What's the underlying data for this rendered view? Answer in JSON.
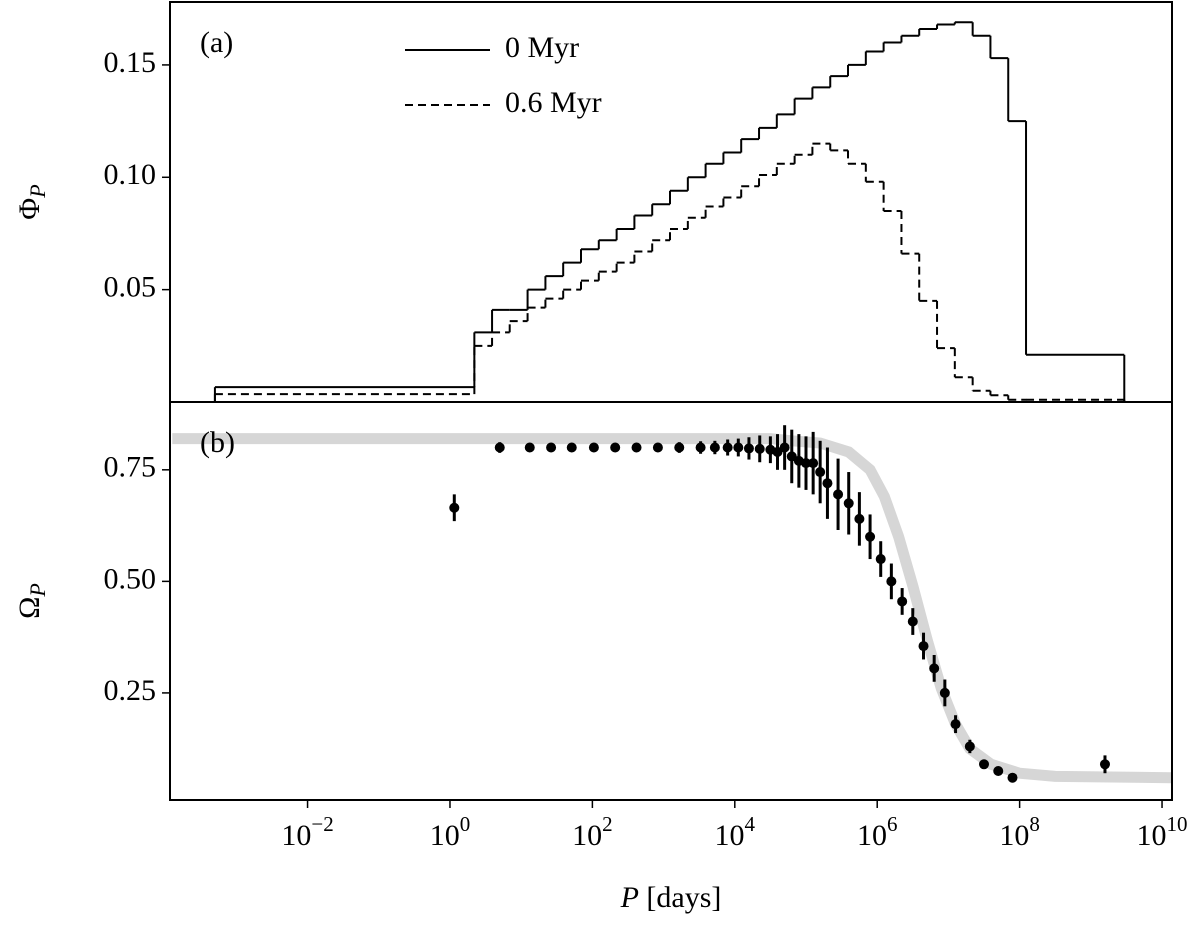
{
  "chart_data": [
    {
      "type": "histogram",
      "annotation": "(a)",
      "y_label": "ΦP",
      "xscale": "log",
      "xlim": [
        0.000117,
        13800000000.0
      ],
      "ylim": [
        0,
        0.178
      ],
      "yticks": [
        0.05,
        {
          "value": 0.1,
          "label": "0.10"
        },
        0.15
      ],
      "legend": "upper center",
      "bins": [
        0.0005,
        2.2,
        3.9,
        6.9,
        12.3,
        21.9,
        38.9,
        69.2,
        123,
        219,
        389,
        692,
        1230,
        2190,
        3890,
        6920,
        12300,
        21900,
        38900,
        69200,
        123000,
        219000,
        389000,
        692000,
        1230000,
        2190000,
        3890000,
        6920000,
        12300000,
        21900000,
        38900000,
        69200000,
        123000000,
        2950000000
      ],
      "series": [
        {
          "name": "0 Myr",
          "color": "#000000",
          "dash": "none",
          "values": [
            0.0066,
            0.031,
            0.041,
            0.041,
            0.05,
            0.056,
            0.062,
            0.068,
            0.072,
            0.077,
            0.083,
            0.088,
            0.094,
            0.1,
            0.106,
            0.111,
            0.117,
            0.122,
            0.128,
            0.135,
            0.14,
            0.145,
            0.15,
            0.156,
            0.16,
            0.163,
            0.166,
            0.168,
            0.169,
            0.163,
            0.153,
            0.125,
            0.021
          ]
        },
        {
          "name": "0.6 Myr",
          "color": "#000000",
          "dash": "8 5",
          "values": [
            0.0035,
            0.025,
            0.031,
            0.036,
            0.042,
            0.046,
            0.05,
            0.054,
            0.058,
            0.062,
            0.067,
            0.072,
            0.077,
            0.082,
            0.087,
            0.091,
            0.096,
            0.101,
            0.106,
            0.11,
            0.115,
            0.112,
            0.106,
            0.098,
            0.085,
            0.066,
            0.045,
            0.024,
            0.011,
            0.005,
            0.003,
            0.001,
            0.001
          ]
        }
      ]
    },
    {
      "type": "scatter",
      "annotation": "(b)",
      "y_label": "ΩP",
      "x_label": "P [days]",
      "xscale": "log",
      "xlim": [
        0.000117,
        13800000000.0
      ],
      "ylim": [
        0.01,
        0.902
      ],
      "xticks": [
        {
          "value": 0.01,
          "label": "10−2"
        },
        {
          "value": 1,
          "label": "100"
        },
        {
          "value": 100,
          "label": "102"
        },
        {
          "value": 10000,
          "label": "104"
        },
        {
          "value": 1000000,
          "label": "106"
        },
        {
          "value": 100000000,
          "label": "108"
        },
        {
          "value": 10000000000,
          "label": "1010"
        }
      ],
      "yticks": [
        0.25,
        {
          "value": 0.5,
          "label": "0.50"
        },
        0.75
      ],
      "points": {
        "color": "#000000",
        "x": [
          1.15,
          5,
          13.2,
          26.3,
          51.3,
          105,
          209,
          417,
          832,
          1660,
          3310,
          5250,
          7940,
          11200,
          15800,
          22400,
          31600,
          39800,
          50100,
          63100,
          79400,
          100000,
          126000,
          158000,
          200000,
          282000,
          398000,
          562000,
          794000,
          1120000,
          1580000,
          2240000,
          3160000,
          4470000,
          6310000,
          8910000,
          12600000,
          20000000,
          31600000,
          50100000,
          79400000,
          1580000000
        ],
        "values": [
          0.665,
          0.8,
          0.8,
          0.8,
          0.8,
          0.8,
          0.8,
          0.8,
          0.8,
          0.8,
          0.8,
          0.8,
          0.8,
          0.8,
          0.798,
          0.797,
          0.795,
          0.79,
          0.8,
          0.78,
          0.77,
          0.765,
          0.765,
          0.745,
          0.72,
          0.695,
          0.675,
          0.64,
          0.6,
          0.55,
          0.5,
          0.455,
          0.41,
          0.355,
          0.305,
          0.25,
          0.18,
          0.13,
          0.09,
          0.075,
          0.06,
          0.09
        ],
        "errors": [
          0.03,
          0.012,
          0.01,
          0.01,
          0.01,
          0.01,
          0.01,
          0.01,
          0.01,
          0.012,
          0.014,
          0.015,
          0.018,
          0.02,
          0.025,
          0.03,
          0.03,
          0.04,
          0.05,
          0.06,
          0.06,
          0.06,
          0.07,
          0.07,
          0.08,
          0.08,
          0.07,
          0.06,
          0.05,
          0.04,
          0.04,
          0.03,
          0.03,
          0.03,
          0.03,
          0.03,
          0.02,
          0.015,
          0.01,
          0.01,
          0.01,
          0.02
        ]
      },
      "fit": {
        "color": "#d6d6d6",
        "x": [
          0.000126,
          31600,
          63100,
          158000,
          398000,
          794000,
          1260000,
          2000000,
          3160000,
          5010000,
          7940000,
          12600000,
          20000000,
          39800000,
          100000000,
          316000000,
          13800000000
        ],
        "values": [
          0.82,
          0.82,
          0.815,
          0.81,
          0.79,
          0.75,
          0.69,
          0.6,
          0.49,
          0.37,
          0.26,
          0.18,
          0.125,
          0.09,
          0.07,
          0.063,
          0.06
        ]
      }
    }
  ]
}
